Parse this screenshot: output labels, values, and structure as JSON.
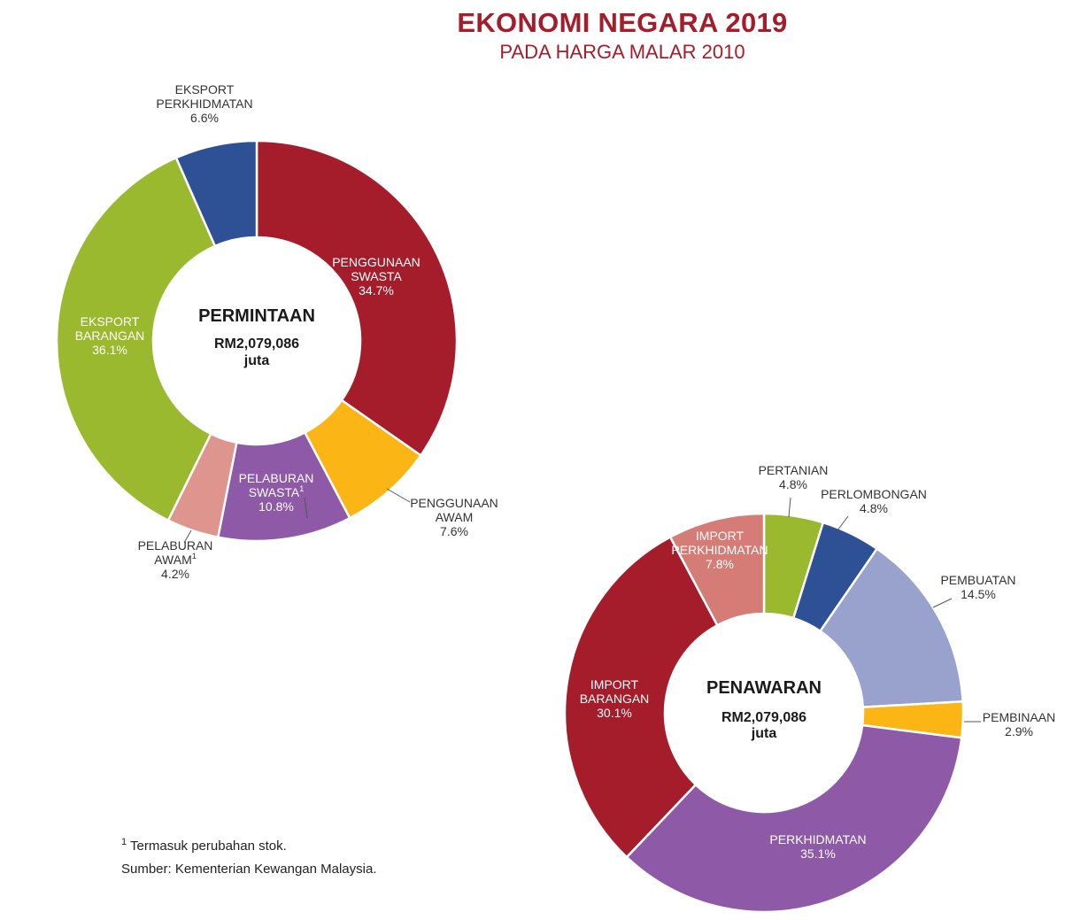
{
  "header": {
    "title": "EKONOMI NEGARA 2019",
    "subtitle": "PADA HARGA MALAR 2010"
  },
  "chart_data": [
    {
      "type": "pie",
      "variant": "donut",
      "center": {
        "title": "PERMINTAAN",
        "value": "RM2,079,086",
        "unit": "juta"
      },
      "slices": [
        {
          "label": [
            "PENGGUNAAN",
            "SWASTA"
          ],
          "value": 34.7,
          "display": "34.7%",
          "color": "#a51c2b",
          "label_color": "#ffffff"
        },
        {
          "label": [
            "PENGGUNAAN",
            "AWAM"
          ],
          "value": 7.6,
          "display": "7.6%",
          "color": "#fbb514",
          "label_color": "#333333"
        },
        {
          "label": [
            "PELABURAN",
            "SWASTA"
          ],
          "sup": "1",
          "value": 10.8,
          "display": "10.8%",
          "color": "#8e59a6",
          "label_color": "#ffffff"
        },
        {
          "label": [
            "PELABURAN",
            "AWAM"
          ],
          "sup": "1",
          "value": 4.2,
          "display": "4.2%",
          "color": "#de958d",
          "label_color": "#333333"
        },
        {
          "label": [
            "EKSPORT",
            "BARANGAN"
          ],
          "value": 36.1,
          "display": "36.1%",
          "color": "#9bb92f",
          "label_color": "#ffffff"
        },
        {
          "label": [
            "EKSPORT",
            "PERKHIDMATAN"
          ],
          "value": 6.6,
          "display": "6.6%",
          "color": "#2e5195",
          "label_color": "#333333"
        }
      ]
    },
    {
      "type": "pie",
      "variant": "donut",
      "center": {
        "title": "PENAWARAN",
        "value": "RM2,079,086",
        "unit": "juta"
      },
      "slices": [
        {
          "label": [
            "PERTANIAN"
          ],
          "value": 4.8,
          "display": "4.8%",
          "color": "#9bb92f",
          "label_color": "#333333"
        },
        {
          "label": [
            "PERLOMBONGAN"
          ],
          "value": 4.8,
          "display": "4.8%",
          "color": "#2e5195",
          "label_color": "#333333"
        },
        {
          "label": [
            "PEMBUATAN"
          ],
          "value": 14.5,
          "display": "14.5%",
          "color": "#98a2cc",
          "label_color": "#333333"
        },
        {
          "label": [
            "PEMBINAAN"
          ],
          "value": 2.9,
          "display": "2.9%",
          "color": "#fbb514",
          "label_color": "#333333"
        },
        {
          "label": [
            "PERKHIDMATAN"
          ],
          "value": 35.1,
          "display": "35.1%",
          "color": "#8e59a6",
          "label_color": "#ffffff"
        },
        {
          "label": [
            "IMPORT",
            "BARANGAN"
          ],
          "value": 30.1,
          "display": "30.1%",
          "color": "#a51c2b",
          "label_color": "#ffffff"
        },
        {
          "label": [
            "IMPORT",
            "PERKHIDMATAN"
          ],
          "value": 7.8,
          "display": "7.8%",
          "color": "#d57c76",
          "label_color": "#ffffff"
        }
      ]
    }
  ],
  "notes": {
    "footnote_marker": "1",
    "footnote": "Termasuk perubahan stok.",
    "source": "Sumber: Kementerian Kewangan Malaysia."
  }
}
